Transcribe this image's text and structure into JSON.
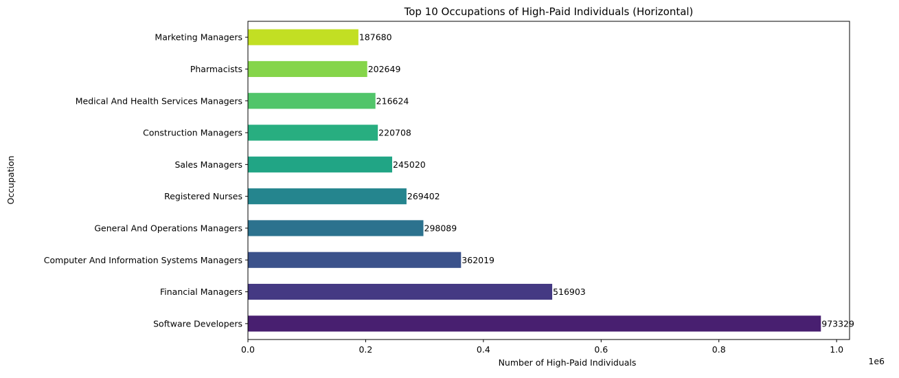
{
  "chart_data": {
    "type": "bar",
    "orientation": "horizontal",
    "title": "Top 10 Occupations of High-Paid Individuals (Horizontal)",
    "xlabel": "Number of High-Paid Individuals",
    "ylabel": "Occupation",
    "x_scale_label": "1e6",
    "xlim": [
      0,
      1021995
    ],
    "xticks": [
      {
        "value": 0,
        "label": "0.0"
      },
      {
        "value": 200000,
        "label": "0.2"
      },
      {
        "value": 400000,
        "label": "0.4"
      },
      {
        "value": 600000,
        "label": "0.6"
      },
      {
        "value": 800000,
        "label": "0.8"
      },
      {
        "value": 1000000,
        "label": "1.0"
      }
    ],
    "grid": false,
    "categories": [
      "Software Developers",
      "Financial Managers",
      "Computer And Information Systems Managers",
      "General And Operations Managers",
      "Registered Nurses",
      "Sales Managers",
      "Construction Managers",
      "Medical And Health Services Managers",
      "Pharmacists",
      "Marketing Managers"
    ],
    "values": [
      973329,
      516903,
      362019,
      298089,
      269402,
      245020,
      220708,
      216624,
      202649,
      187680
    ],
    "data_labels": [
      "973329",
      "516903",
      "362019",
      "298089",
      "269402",
      "245020",
      "220708",
      "216624",
      "202649",
      "187680"
    ],
    "colors": [
      "#481f70",
      "#443983",
      "#3b528b",
      "#2c728e",
      "#25858e",
      "#21a585",
      "#28ae80",
      "#51c56a",
      "#85d54a",
      "#c2df23"
    ]
  }
}
